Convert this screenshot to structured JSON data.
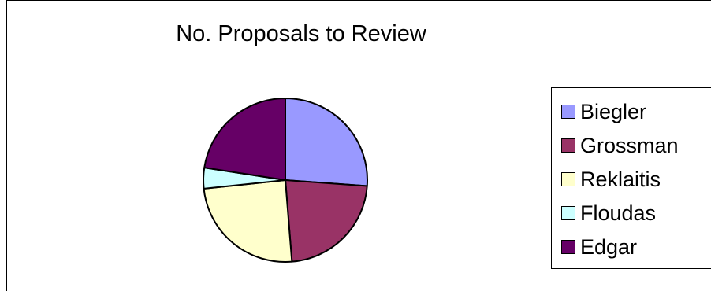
{
  "chart_data": {
    "type": "pie",
    "title": "No. Proposals to Review",
    "categories": [
      "Biegler",
      "Grossman",
      "Reklaitis",
      "Floudas",
      "Edgar"
    ],
    "values": [
      25.5,
      22,
      24,
      4,
      22
    ],
    "colors": [
      "#9999ff",
      "#993366",
      "#ffffcc",
      "#ccffff",
      "#660066"
    ],
    "legend_position": "right"
  }
}
